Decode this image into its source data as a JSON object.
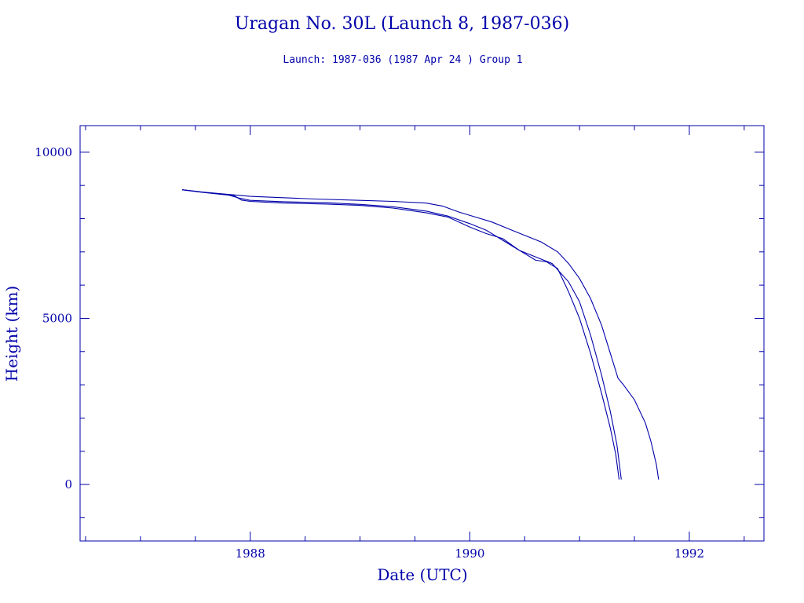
{
  "chart_data": {
    "type": "line",
    "title": "Uragan No. 30L (Launch 8, 1987-036)",
    "subtitle": "Launch: 1987-036  (1987 Apr 24 )  Group 1",
    "xlabel": "Date (UTC)",
    "ylabel": "Height (km)",
    "xlim": [
      1986.45,
      1992.68
    ],
    "ylim": [
      -1700,
      10800
    ],
    "x_ticks": [
      1988,
      1990,
      1992
    ],
    "y_ticks": [
      0,
      5000,
      10000
    ],
    "x_minor_ticks": [
      1986.5,
      1987,
      1987.5,
      1988.5,
      1989,
      1989.5,
      1990.5,
      1991,
      1991.5,
      1992.5
    ],
    "y_minor_ticks": [
      -1000,
      1000,
      2000,
      3000,
      4000,
      6000,
      7000,
      8000,
      9000
    ],
    "grid": false,
    "legend": "none",
    "color": "#0000aa",
    "series": [
      {
        "x": [
          1987.38,
          1987.6,
          1987.8,
          1988.0,
          1988.3,
          1988.6,
          1989.0,
          1989.3,
          1989.6,
          1989.75,
          1989.9,
          1990.05,
          1990.2,
          1990.35,
          1990.5,
          1990.65,
          1990.8,
          1990.9,
          1991.0,
          1991.1,
          1991.2,
          1991.28,
          1991.35,
          1991.4,
          1991.5,
          1991.6,
          1991.65,
          1991.7,
          1991.72
        ],
        "y": [
          8870,
          8790,
          8730,
          8670,
          8630,
          8590,
          8550,
          8520,
          8470,
          8380,
          8200,
          8050,
          7900,
          7700,
          7500,
          7300,
          7000,
          6650,
          6200,
          5600,
          4800,
          3950,
          3200,
          3000,
          2550,
          1850,
          1300,
          600,
          150
        ]
      },
      {
        "x": [
          1987.38,
          1987.6,
          1987.8,
          1987.9,
          1988.0,
          1988.3,
          1988.7,
          1989.0,
          1989.3,
          1989.6,
          1989.8,
          1990.0,
          1990.15,
          1990.3,
          1990.45,
          1990.6,
          1990.75,
          1990.9,
          1991.0,
          1991.1,
          1991.2,
          1991.28,
          1991.34,
          1991.38
        ],
        "y": [
          8870,
          8780,
          8710,
          8620,
          8550,
          8510,
          8480,
          8430,
          8360,
          8230,
          8080,
          7850,
          7650,
          7350,
          7050,
          6850,
          6650,
          6100,
          5500,
          4500,
          3300,
          2200,
          1200,
          150
        ]
      },
      {
        "x": [
          1987.38,
          1987.6,
          1987.85,
          1987.92,
          1988.0,
          1988.3,
          1988.7,
          1989.0,
          1989.3,
          1989.6,
          1989.8,
          1990.0,
          1990.15,
          1990.3,
          1990.45,
          1990.6,
          1990.7,
          1990.8,
          1990.9,
          1991.0,
          1991.1,
          1991.2,
          1991.28,
          1991.33,
          1991.36
        ],
        "y": [
          8870,
          8780,
          8700,
          8560,
          8520,
          8470,
          8440,
          8400,
          8320,
          8180,
          8050,
          7750,
          7550,
          7400,
          7050,
          6750,
          6700,
          6500,
          5800,
          5000,
          3950,
          2750,
          1700,
          900,
          150
        ]
      }
    ]
  }
}
